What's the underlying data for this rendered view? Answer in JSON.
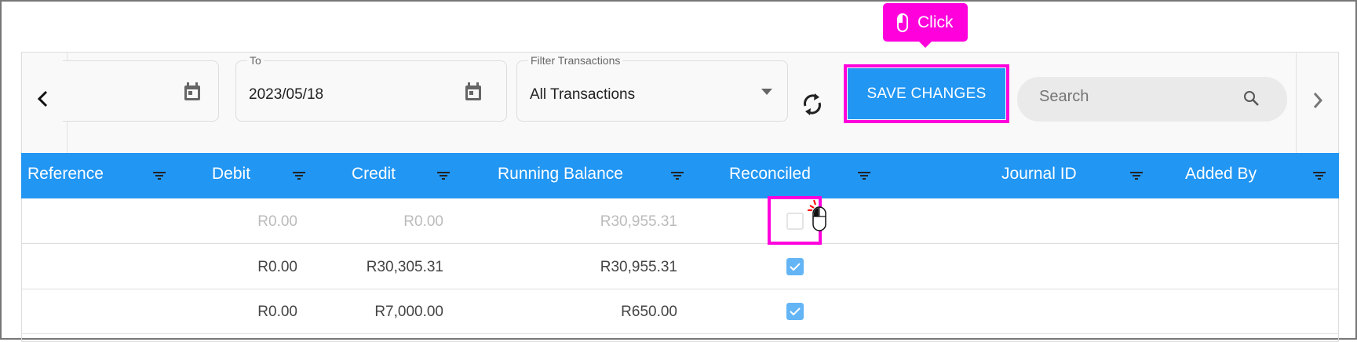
{
  "toolbar": {
    "from_field": {
      "label": "",
      "value": ""
    },
    "to_field": {
      "label": "To",
      "value": "2023/05/18"
    },
    "filter": {
      "label": "Filter Transactions",
      "selected": "All Transactions"
    },
    "save_label": "SAVE CHANGES",
    "search_placeholder": "Search"
  },
  "tooltip": {
    "label": "Click"
  },
  "table": {
    "columns": [
      "Reference",
      "Debit",
      "Credit",
      "Running Balance",
      "Reconciled",
      "Journal ID",
      "Added By"
    ],
    "rows": [
      {
        "reference": "",
        "debit": "R0.00",
        "credit": "R0.00",
        "running_balance": "R30,955.31",
        "reconciled": false,
        "journal_id": "",
        "added_by": "",
        "muted": true
      },
      {
        "reference": "",
        "debit": "R0.00",
        "credit": "R30,305.31",
        "running_balance": "R30,955.31",
        "reconciled": true,
        "journal_id": "",
        "added_by": ""
      },
      {
        "reference": "",
        "debit": "R0.00",
        "credit": "R7,000.00",
        "running_balance": "R650.00",
        "reconciled": true,
        "journal_id": "",
        "added_by": ""
      }
    ]
  },
  "colors": {
    "accent": "#2196f3",
    "highlight": "#ff00dd",
    "checkbox": "#64b5f6"
  }
}
